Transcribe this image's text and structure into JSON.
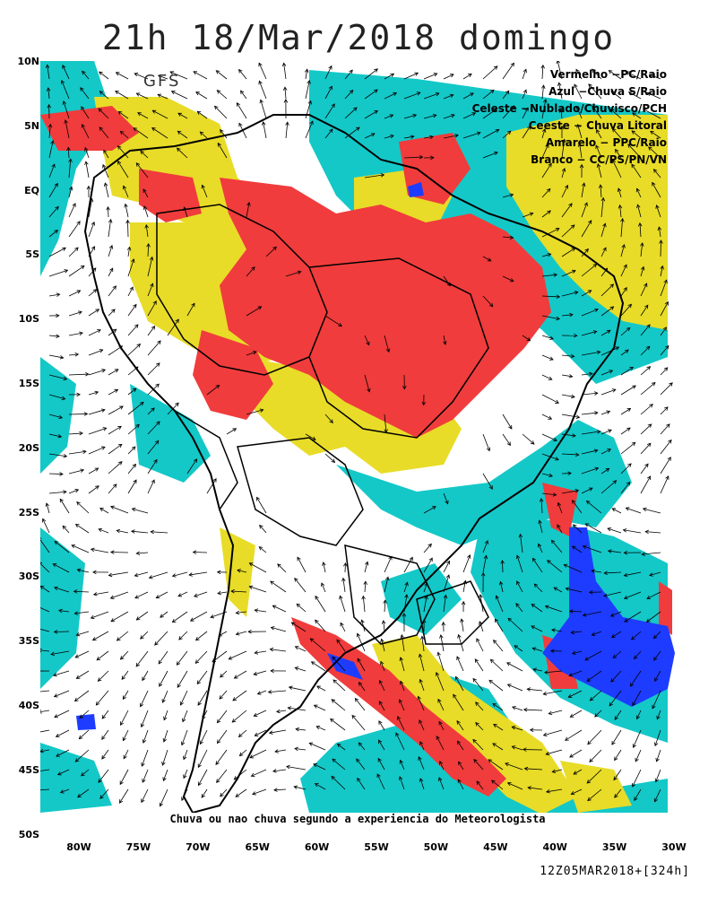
{
  "title": "21h 18/Mar/2018 domingo",
  "model": "GFS",
  "legend": [
    {
      "text": "Vermelho  −PC/Raio",
      "color": "#f03c3c"
    },
    {
      "text": "Azul  −Chuva S/Raio",
      "color": "#1e3cff"
    },
    {
      "text": "Celeste  −Nublado/Chuvisco/PCH",
      "color": "#14c8c8"
    },
    {
      "text": "Ceeste  −  Chuva Litoral",
      "color": "#14c8c8"
    },
    {
      "text": "Amarelo  −  PPC/Raio",
      "color": "#e8dc28"
    },
    {
      "text": "Branco  −  CC/PS/PN/VN",
      "color": "#ffffff"
    }
  ],
  "lat_labels": [
    "10N",
    "5N",
    "EQ",
    "5S",
    "10S",
    "15S",
    "20S",
    "25S",
    "30S",
    "35S",
    "40S",
    "45S",
    "50S"
  ],
  "lon_labels": [
    "80W",
    "75W",
    "70W",
    "65W",
    "60W",
    "55W",
    "50W",
    "45W",
    "40W",
    "35W",
    "30W"
  ],
  "footer_note": "Chuva ou nao chuva segundo a experiencia do Meteorologista",
  "run_info": "12Z05MAR2018+[324h]",
  "colors": {
    "red": "#f03c3c",
    "blue": "#1e3cff",
    "cyan": "#14c8c8",
    "yellow": "#e8dc28",
    "white": "#ffffff",
    "border": "#000000"
  }
}
